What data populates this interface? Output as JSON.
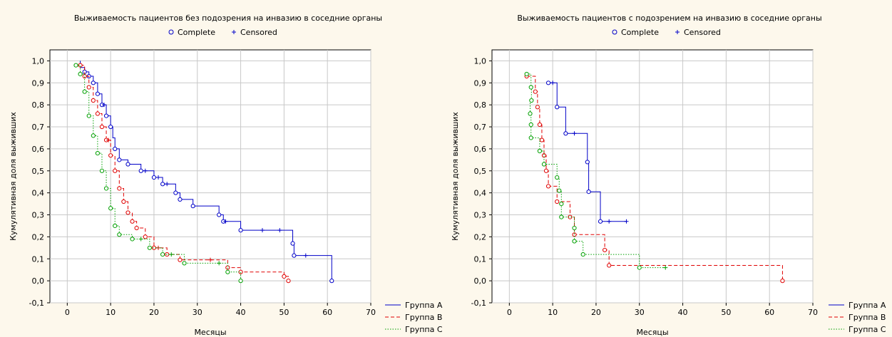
{
  "colors": {
    "background": "#fdf8ec",
    "plot_background": "#ffffff",
    "grid": "#c8c8c8",
    "group_a": "#0000c8",
    "group_b": "#e00000",
    "group_c": "#00a000"
  },
  "chart_data": [
    {
      "type": "line",
      "title": "Выживаемость пациентов без подозрения на инвазию в соседние органы",
      "marker_legend": [
        {
          "symbol": "○",
          "label": "Complete"
        },
        {
          "symbol": "+",
          "label": "Censored"
        }
      ],
      "xlabel": "Месяцы",
      "ylabel": "Кумулятивная доля выживших",
      "xlim": [
        -4,
        70
      ],
      "ylim": [
        -0.1,
        1.05
      ],
      "xticks": [
        "0",
        "10",
        "20",
        "30",
        "40",
        "50",
        "60",
        "70"
      ],
      "yticks": [
        "-0,1",
        "0,0",
        "0,1",
        "0,2",
        "0,3",
        "0,4",
        "0,5",
        "0,6",
        "0,7",
        "0,8",
        "0,9",
        "1,0"
      ],
      "grid": true,
      "legend_position": "bottom-right",
      "series": [
        {
          "name": "Группа A",
          "steps": [
            [
              3,
              1.0
            ],
            [
              3,
              0.97
            ],
            [
              4,
              0.95
            ],
            [
              5,
              0.93
            ],
            [
              6,
              0.9
            ],
            [
              7,
              0.85
            ],
            [
              8,
              0.8
            ],
            [
              9,
              0.75
            ],
            [
              10,
              0.7
            ],
            [
              10.5,
              0.65
            ],
            [
              11,
              0.6
            ],
            [
              12,
              0.55
            ],
            [
              14,
              0.53
            ],
            [
              17,
              0.5
            ],
            [
              20,
              0.47
            ],
            [
              22,
              0.44
            ],
            [
              25,
              0.4
            ],
            [
              26,
              0.37
            ],
            [
              29,
              0.34
            ],
            [
              35,
              0.3
            ],
            [
              36,
              0.27
            ],
            [
              40,
              0.23
            ],
            [
              52,
              0.17
            ],
            [
              52.3,
              0.115
            ],
            [
              61,
              0.0
            ]
          ],
          "end_x": 61,
          "complete": [
            [
              4,
              0.95
            ],
            [
              5,
              0.93
            ],
            [
              6,
              0.9
            ],
            [
              7,
              0.85
            ],
            [
              8,
              0.8
            ],
            [
              9,
              0.75
            ],
            [
              10,
              0.7
            ],
            [
              11,
              0.6
            ],
            [
              12,
              0.55
            ],
            [
              14,
              0.53
            ],
            [
              17,
              0.5
            ],
            [
              20,
              0.47
            ],
            [
              22,
              0.44
            ],
            [
              25,
              0.4
            ],
            [
              26,
              0.37
            ],
            [
              29,
              0.34
            ],
            [
              35,
              0.3
            ],
            [
              36,
              0.27
            ],
            [
              40,
              0.23
            ],
            [
              52,
              0.17
            ],
            [
              52.3,
              0.115
            ],
            [
              61,
              0.0
            ]
          ],
          "censored": [
            [
              8.5,
              0.8
            ],
            [
              18,
              0.5
            ],
            [
              21,
              0.47
            ],
            [
              23,
              0.44
            ],
            [
              36.5,
              0.27
            ],
            [
              45,
              0.23
            ],
            [
              49,
              0.23
            ],
            [
              55,
              0.115
            ]
          ]
        },
        {
          "name": "Группа B",
          "steps": [
            [
              3,
              0.98
            ],
            [
              4,
              0.93
            ],
            [
              5,
              0.88
            ],
            [
              6,
              0.82
            ],
            [
              7,
              0.76
            ],
            [
              8,
              0.7
            ],
            [
              9,
              0.64
            ],
            [
              10,
              0.57
            ],
            [
              11,
              0.5
            ],
            [
              12,
              0.42
            ],
            [
              13,
              0.36
            ],
            [
              14,
              0.31
            ],
            [
              15,
              0.27
            ],
            [
              16,
              0.24
            ],
            [
              18,
              0.2
            ],
            [
              20,
              0.15
            ],
            [
              23,
              0.12
            ],
            [
              26,
              0.095
            ],
            [
              37,
              0.06
            ],
            [
              40,
              0.04
            ],
            [
              50,
              0.02
            ],
            [
              51,
              0.0
            ]
          ],
          "end_x": 51,
          "complete": [
            [
              3,
              0.98
            ],
            [
              4,
              0.93
            ],
            [
              5,
              0.88
            ],
            [
              6,
              0.82
            ],
            [
              7,
              0.76
            ],
            [
              8,
              0.7
            ],
            [
              9,
              0.64
            ],
            [
              10,
              0.57
            ],
            [
              11,
              0.5
            ],
            [
              12,
              0.42
            ],
            [
              13,
              0.36
            ],
            [
              14,
              0.31
            ],
            [
              15,
              0.27
            ],
            [
              16,
              0.24
            ],
            [
              18,
              0.2
            ],
            [
              20,
              0.15
            ],
            [
              23,
              0.12
            ],
            [
              26,
              0.095
            ],
            [
              37,
              0.06
            ],
            [
              40,
              0.04
            ],
            [
              50,
              0.02
            ],
            [
              51,
              0.0
            ]
          ],
          "censored": [
            [
              9.5,
              0.64
            ],
            [
              21,
              0.15
            ],
            [
              33,
              0.095
            ]
          ]
        },
        {
          "name": "Группа C",
          "steps": [
            [
              2,
              0.98
            ],
            [
              3,
              0.94
            ],
            [
              4,
              0.86
            ],
            [
              5,
              0.75
            ],
            [
              6,
              0.66
            ],
            [
              7,
              0.58
            ],
            [
              8,
              0.5
            ],
            [
              9,
              0.42
            ],
            [
              10,
              0.33
            ],
            [
              11,
              0.25
            ],
            [
              12,
              0.21
            ],
            [
              15,
              0.19
            ],
            [
              19,
              0.15
            ],
            [
              22,
              0.12
            ],
            [
              27,
              0.08
            ],
            [
              37,
              0.04
            ],
            [
              40,
              0.0
            ]
          ],
          "end_x": 40,
          "complete": [
            [
              2,
              0.98
            ],
            [
              3,
              0.94
            ],
            [
              4,
              0.86
            ],
            [
              5,
              0.75
            ],
            [
              6,
              0.66
            ],
            [
              7,
              0.58
            ],
            [
              8,
              0.5
            ],
            [
              9,
              0.42
            ],
            [
              10,
              0.33
            ],
            [
              11,
              0.25
            ],
            [
              12,
              0.21
            ],
            [
              15,
              0.19
            ],
            [
              19,
              0.15
            ],
            [
              22,
              0.12
            ],
            [
              27,
              0.08
            ],
            [
              37,
              0.04
            ],
            [
              40,
              0.0
            ]
          ],
          "censored": [
            [
              17,
              0.19
            ],
            [
              24,
              0.12
            ],
            [
              35,
              0.08
            ]
          ]
        }
      ]
    },
    {
      "type": "line",
      "title": "Выживаемость пациентов с подозрением на инвазию в соседние органы",
      "marker_legend": [
        {
          "symbol": "○",
          "label": "Complete"
        },
        {
          "symbol": "+",
          "label": "Censored"
        }
      ],
      "xlabel": "Месяцы",
      "ylabel": "Кумулятивная доля выживших",
      "xlim": [
        -4,
        70
      ],
      "ylim": [
        -0.1,
        1.05
      ],
      "xticks": [
        "0",
        "10",
        "20",
        "30",
        "40",
        "50",
        "60",
        "70"
      ],
      "yticks": [
        "-0,1",
        "0,0",
        "0,1",
        "0,2",
        "0,3",
        "0,4",
        "0,5",
        "0,6",
        "0,7",
        "0,8",
        "0,9",
        "1,0"
      ],
      "grid": true,
      "legend_position": "bottom-right",
      "series": [
        {
          "name": "Группа A",
          "steps": [
            [
              9,
              0.9
            ],
            [
              11,
              0.79
            ],
            [
              13,
              0.67
            ],
            [
              18,
              0.54
            ],
            [
              18.3,
              0.405
            ],
            [
              21,
              0.27
            ]
          ],
          "end_x": 27,
          "complete": [
            [
              9,
              0.9
            ],
            [
              11,
              0.79
            ],
            [
              13,
              0.67
            ],
            [
              18,
              0.54
            ],
            [
              18.3,
              0.405
            ],
            [
              21,
              0.27
            ]
          ],
          "censored": [
            [
              10,
              0.9
            ],
            [
              15,
              0.67
            ],
            [
              23,
              0.27
            ],
            [
              27,
              0.27
            ]
          ]
        },
        {
          "name": "Группа B",
          "steps": [
            [
              4,
              0.93
            ],
            [
              6,
              0.86
            ],
            [
              6.5,
              0.79
            ],
            [
              7,
              0.71
            ],
            [
              7.5,
              0.64
            ],
            [
              8,
              0.57
            ],
            [
              8.5,
              0.5
            ],
            [
              9,
              0.43
            ],
            [
              11,
              0.36
            ],
            [
              14,
              0.29
            ],
            [
              15,
              0.21
            ],
            [
              22,
              0.14
            ],
            [
              23,
              0.07
            ],
            [
              63,
              0.0
            ]
          ],
          "end_x": 63,
          "complete": [
            [
              4,
              0.93
            ],
            [
              6,
              0.86
            ],
            [
              6.5,
              0.79
            ],
            [
              7,
              0.71
            ],
            [
              7.5,
              0.64
            ],
            [
              8,
              0.57
            ],
            [
              8.5,
              0.5
            ],
            [
              9,
              0.43
            ],
            [
              11,
              0.36
            ],
            [
              14,
              0.29
            ],
            [
              15,
              0.21
            ],
            [
              22,
              0.14
            ],
            [
              23,
              0.07
            ],
            [
              63,
              0.0
            ]
          ],
          "censored": []
        },
        {
          "name": "Группа C",
          "steps": [
            [
              4,
              0.94
            ],
            [
              5,
              0.88
            ],
            [
              5.1,
              0.82
            ],
            [
              4.8,
              0.76
            ],
            [
              5,
              0.71
            ],
            [
              5,
              0.65
            ],
            [
              7,
              0.59
            ],
            [
              8,
              0.53
            ],
            [
              11,
              0.47
            ],
            [
              11.5,
              0.41
            ],
            [
              12,
              0.35
            ],
            [
              12,
              0.29
            ],
            [
              15,
              0.24
            ],
            [
              15,
              0.18
            ],
            [
              17,
              0.12
            ],
            [
              30,
              0.06
            ]
          ],
          "end_x": 36,
          "complete": [
            [
              4,
              0.94
            ],
            [
              5,
              0.88
            ],
            [
              5.1,
              0.82
            ],
            [
              4.8,
              0.76
            ],
            [
              5,
              0.71
            ],
            [
              5,
              0.65
            ],
            [
              7,
              0.59
            ],
            [
              8,
              0.53
            ],
            [
              11,
              0.47
            ],
            [
              11.5,
              0.41
            ],
            [
              12,
              0.35
            ],
            [
              12,
              0.29
            ],
            [
              15,
              0.24
            ],
            [
              15,
              0.18
            ],
            [
              17,
              0.12
            ],
            [
              30,
              0.06
            ]
          ],
          "censored": [
            [
              36,
              0.06
            ]
          ]
        }
      ]
    }
  ]
}
